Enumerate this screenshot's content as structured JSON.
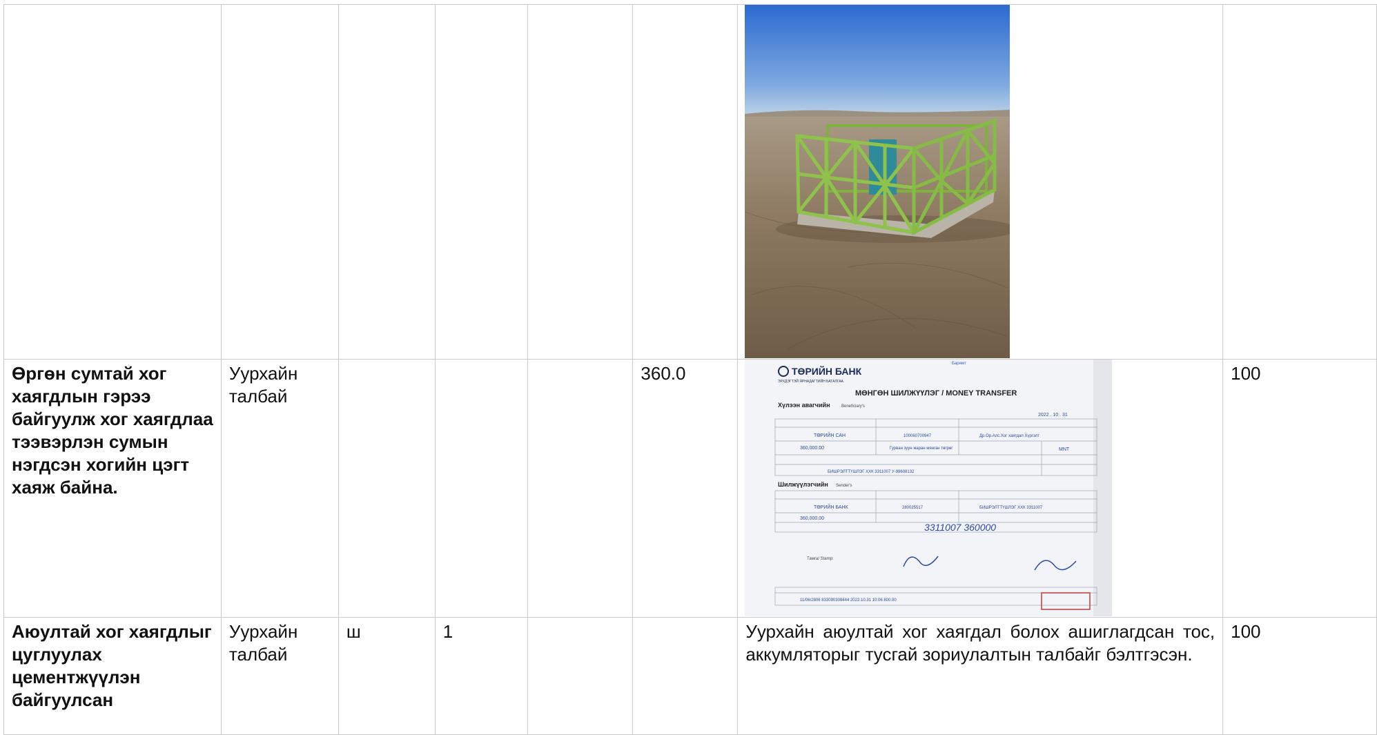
{
  "rows": [
    {
      "activity": "",
      "location": "",
      "unit": "",
      "quantity": "",
      "col5": "",
      "cost": "",
      "evidence_type": "photo",
      "percent": ""
    },
    {
      "activity": "Өргөн сумтай хог хаягдлын гэрээ байгуулж хог хаягдлаа тээвэрлэн сумын нэгдсэн хогийн цэгт хаяж байна.",
      "location": "Уурхайн талбай",
      "unit": "",
      "quantity": "",
      "col5": "",
      "cost": "360.0",
      "evidence_type": "receipt",
      "percent": "100"
    },
    {
      "activity": "Аюултай хог хаягдлыг цуглуулах цементжүүлэн байгуулсан",
      "location": "Уурхайн талбай",
      "unit": "ш",
      "quantity": "1",
      "col5": "",
      "cost": "",
      "evidence_text": "Уурхайн аюултай хог хаягдал болох ашиглагдсан тос, аккумляторыг тусгай зориулалтын талбайг бэлтгэсэн.",
      "percent": "100"
    }
  ],
  "receipt": {
    "bank_name": "ТӨРИЙН БАНК",
    "bank_subtitle": "ЭРХДЭГТЭЙ ЯРНАДАГТИЙН БАТАЛГАА",
    "stamp_label": "Баримт",
    "form_title": "МӨНГӨН ШИЛЖҮҮЛЭГ / MONEY TRANSFER",
    "beneficiary_heading": "Хүлээн авагчийн",
    "beneficiary_heading_en": "Beneficiary's",
    "sender_heading": "Шилжүүлэгчийн",
    "sender_heading_en": "Sender's",
    "date": "2022 . 10 . 31",
    "beneficiary_bank": "ТӨРИЙН САН",
    "beneficiary_account": "100060700947",
    "beneficiary_name": "Др.Ор.Алс.Хог хаягдал Хүргэлт",
    "amount": "360,000.00",
    "amount_words": "Гурван зуун жаран мянган төгрөг",
    "currency": "MNT",
    "purpose": "БИШРЭЛТТҮШЛЭГ ХХК 3311007 У-99608132",
    "sender_bank": "ТӨРИЙН БАНК",
    "sender_account": "280025517",
    "sender_name": "БИШРЭЛТТҮШЛЭГ ХХК 3311007",
    "sender_amount": "360,000.00",
    "handwritten": "3311007   360000",
    "signature_label": "Тамга/ Stamp:",
    "bottom_ids": "11/06/2806   833090308444   2022.10.31 10:06   800.00"
  },
  "colors": {
    "sky_top": "#2e6fd0",
    "sky_bottom": "#b5cfe6",
    "ground": "#8d7a63",
    "cage_green": "#8ec24a",
    "ink_blue": "#2a48a8",
    "stamp_red": "#c23a3a"
  }
}
